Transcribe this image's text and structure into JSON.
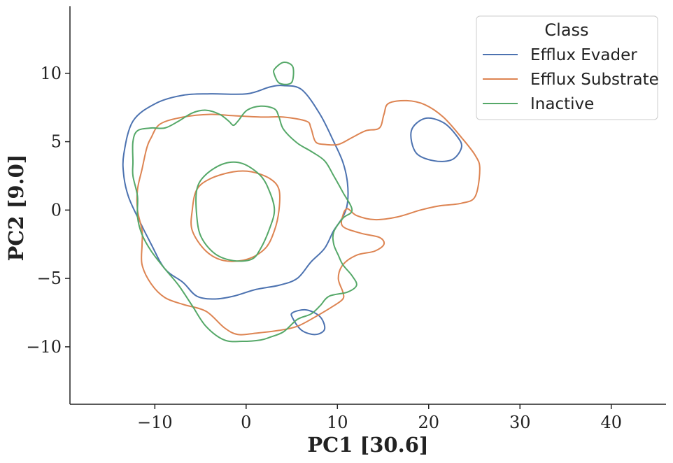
{
  "chart_data": {
    "type": "contour",
    "xlabel": "PC1 [30.6]",
    "ylabel": "PC2 [9.0]",
    "xlim": [
      -19.3,
      46
    ],
    "ylim": [
      -14.2,
      14.9
    ],
    "xticks": [
      -10,
      0,
      10,
      20,
      30,
      40
    ],
    "yticks": [
      -10,
      -5,
      0,
      5,
      10
    ],
    "xtick_labels": [
      "−10",
      "0",
      "10",
      "20",
      "30",
      "40"
    ],
    "ytick_labels": [
      "−10",
      "−5",
      "0",
      "5",
      "10"
    ],
    "grid": false,
    "legend": {
      "title": "Class",
      "placement": "top-right"
    },
    "series": [
      {
        "name": "Efflux Evader",
        "color": "#4c72b0",
        "contours": [
          [
            [
              -13.4,
              4.1
            ],
            [
              -12.4,
              6.5
            ],
            [
              -9.9,
              7.8
            ],
            [
              -6.9,
              8.4
            ],
            [
              -3.9,
              8.5
            ],
            [
              0.1,
              8.5
            ],
            [
              2.6,
              9.0
            ],
            [
              4.1,
              9.1
            ],
            [
              6.1,
              8.8
            ],
            [
              8.1,
              7.0
            ],
            [
              9.6,
              5.0
            ],
            [
              10.6,
              3.5
            ],
            [
              11.1,
              2.0
            ],
            [
              11.1,
              0.5
            ],
            [
              10.6,
              -0.5
            ],
            [
              9.6,
              -1.5
            ],
            [
              8.6,
              -2.8
            ],
            [
              7.1,
              -3.8
            ],
            [
              5.6,
              -5.0
            ],
            [
              3.6,
              -5.5
            ],
            [
              1.1,
              -5.8
            ],
            [
              -1.4,
              -6.3
            ],
            [
              -3.4,
              -6.5
            ],
            [
              -5.4,
              -6.3
            ],
            [
              -6.9,
              -5.3
            ],
            [
              -8.9,
              -4.3
            ],
            [
              -10.4,
              -2.5
            ],
            [
              -11.9,
              -0.5
            ],
            [
              -12.9,
              1.0
            ],
            [
              -13.4,
              2.5
            ],
            [
              -13.4,
              4.1
            ]
          ],
          [
            [
              18.1,
              5.8
            ],
            [
              19.6,
              6.7
            ],
            [
              21.6,
              6.4
            ],
            [
              23.1,
              5.4
            ],
            [
              23.6,
              4.6
            ],
            [
              22.6,
              3.7
            ],
            [
              20.6,
              3.6
            ],
            [
              18.6,
              4.2
            ],
            [
              18.1,
              5.8
            ]
          ],
          [
            [
              5.1,
              -7.5
            ],
            [
              6.6,
              -7.3
            ],
            [
              8.1,
              -7.8
            ],
            [
              8.6,
              -8.7
            ],
            [
              7.6,
              -9.1
            ],
            [
              6.1,
              -8.8
            ],
            [
              5.1,
              -7.9
            ],
            [
              5.1,
              -7.5
            ]
          ]
        ]
      },
      {
        "name": "Efflux Substrate",
        "color": "#dd8452",
        "contours": [
          [
            [
              -10.4,
              5.3
            ],
            [
              -9.4,
              6.3
            ],
            [
              -6.9,
              6.8
            ],
            [
              -3.9,
              7.0
            ],
            [
              -1.4,
              6.9
            ],
            [
              1.6,
              6.8
            ],
            [
              4.1,
              6.8
            ],
            [
              6.6,
              6.5
            ],
            [
              7.1,
              6.0
            ],
            [
              7.6,
              5.0
            ],
            [
              8.6,
              4.8
            ],
            [
              10.1,
              4.8
            ],
            [
              11.6,
              5.3
            ],
            [
              13.1,
              5.8
            ],
            [
              14.6,
              6.0
            ],
            [
              15.1,
              7.0
            ],
            [
              15.6,
              7.8
            ],
            [
              17.6,
              8.0
            ],
            [
              19.6,
              7.7
            ],
            [
              21.6,
              6.8
            ],
            [
              23.6,
              5.3
            ],
            [
              25.1,
              4.0
            ],
            [
              25.6,
              3.0
            ],
            [
              25.1,
              1.0
            ],
            [
              23.6,
              0.5
            ],
            [
              21.1,
              0.3
            ],
            [
              19.1,
              0.0
            ],
            [
              16.6,
              -0.5
            ],
            [
              14.1,
              -0.7
            ],
            [
              12.1,
              -0.4
            ],
            [
              11.1,
              0.1
            ],
            [
              10.6,
              -0.4
            ],
            [
              10.6,
              -1.2
            ],
            [
              12.6,
              -1.7
            ],
            [
              14.6,
              -2.0
            ],
            [
              15.1,
              -2.5
            ],
            [
              14.1,
              -3.0
            ],
            [
              12.1,
              -3.3
            ],
            [
              10.6,
              -4.0
            ],
            [
              10.1,
              -5.0
            ],
            [
              10.6,
              -6.0
            ],
            [
              10.6,
              -6.5
            ],
            [
              9.6,
              -7.0
            ],
            [
              7.6,
              -7.8
            ],
            [
              5.6,
              -8.5
            ],
            [
              3.6,
              -8.8
            ],
            [
              1.1,
              -9.0
            ],
            [
              -0.9,
              -9.1
            ],
            [
              -2.4,
              -8.6
            ],
            [
              -4.4,
              -7.4
            ],
            [
              -6.9,
              -6.9
            ],
            [
              -8.9,
              -6.4
            ],
            [
              -10.4,
              -5.4
            ],
            [
              -11.4,
              -4.0
            ],
            [
              -11.4,
              -2.5
            ],
            [
              -11.4,
              -1.5
            ],
            [
              -11.9,
              0.0
            ],
            [
              -11.9,
              1.5
            ],
            [
              -11.4,
              3.0
            ],
            [
              -10.9,
              4.5
            ],
            [
              -10.4,
              5.3
            ]
          ],
          [
            [
              -5.9,
              0.0
            ],
            [
              -5.4,
              1.5
            ],
            [
              -3.9,
              2.3
            ],
            [
              -1.4,
              2.8
            ],
            [
              0.6,
              2.8
            ],
            [
              2.6,
              2.3
            ],
            [
              3.6,
              1.5
            ],
            [
              3.6,
              0.0
            ],
            [
              3.1,
              -1.5
            ],
            [
              2.1,
              -2.8
            ],
            [
              0.1,
              -3.6
            ],
            [
              -2.4,
              -3.7
            ],
            [
              -4.4,
              -3.0
            ],
            [
              -5.9,
              -1.5
            ],
            [
              -5.9,
              0.0
            ]
          ]
        ]
      },
      {
        "name": "Inactive",
        "color": "#55a868",
        "contours": [
          [
            [
              -12.4,
              5.0
            ],
            [
              -11.9,
              5.8
            ],
            [
              -10.4,
              6.0
            ],
            [
              -8.9,
              6.0
            ],
            [
              -7.4,
              6.5
            ],
            [
              -5.9,
              7.1
            ],
            [
              -4.4,
              7.3
            ],
            [
              -2.9,
              7.0
            ],
            [
              -1.9,
              6.5
            ],
            [
              -1.4,
              6.2
            ],
            [
              -0.9,
              6.5
            ],
            [
              0.1,
              7.3
            ],
            [
              1.6,
              7.6
            ],
            [
              3.1,
              7.4
            ],
            [
              3.6,
              6.8
            ],
            [
              4.1,
              5.9
            ],
            [
              5.6,
              4.9
            ],
            [
              7.1,
              4.3
            ],
            [
              8.6,
              3.6
            ],
            [
              9.6,
              2.5
            ],
            [
              10.6,
              1.3
            ],
            [
              11.6,
              0.0
            ],
            [
              10.6,
              -0.6
            ],
            [
              9.6,
              -1.6
            ],
            [
              9.6,
              -2.5
            ],
            [
              10.1,
              -3.3
            ],
            [
              10.6,
              -4.0
            ],
            [
              11.6,
              -4.8
            ],
            [
              12.1,
              -5.5
            ],
            [
              11.1,
              -6.0
            ],
            [
              9.1,
              -6.3
            ],
            [
              8.1,
              -7.0
            ],
            [
              7.1,
              -7.6
            ],
            [
              5.6,
              -8.0
            ],
            [
              4.1,
              -8.9
            ],
            [
              2.6,
              -9.3
            ],
            [
              1.6,
              -9.5
            ],
            [
              -0.4,
              -9.6
            ],
            [
              -2.4,
              -9.5
            ],
            [
              -4.4,
              -8.5
            ],
            [
              -5.9,
              -7.0
            ],
            [
              -7.4,
              -5.5
            ],
            [
              -8.9,
              -4.3
            ],
            [
              -10.4,
              -3.0
            ],
            [
              -11.4,
              -1.8
            ],
            [
              -11.9,
              -0.5
            ],
            [
              -11.9,
              1.0
            ],
            [
              -12.4,
              2.5
            ],
            [
              -12.4,
              3.5
            ],
            [
              -12.4,
              5.0
            ]
          ],
          [
            [
              -5.4,
              1.5
            ],
            [
              -4.4,
              2.6
            ],
            [
              -2.4,
              3.4
            ],
            [
              -0.4,
              3.4
            ],
            [
              1.6,
              2.5
            ],
            [
              2.6,
              1.3
            ],
            [
              3.1,
              0.0
            ],
            [
              2.6,
              -1.3
            ],
            [
              1.6,
              -2.8
            ],
            [
              0.6,
              -3.6
            ],
            [
              -1.4,
              -3.7
            ],
            [
              -3.4,
              -3.2
            ],
            [
              -4.9,
              -2.0
            ],
            [
              -5.4,
              -0.5
            ],
            [
              -5.4,
              1.5
            ]
          ],
          [
            [
              3.1,
              10.3
            ],
            [
              4.1,
              10.8
            ],
            [
              5.1,
              10.5
            ],
            [
              5.1,
              9.5
            ],
            [
              4.6,
              9.2
            ],
            [
              3.6,
              9.3
            ],
            [
              3.1,
              9.9
            ],
            [
              3.1,
              10.3
            ]
          ]
        ]
      }
    ]
  }
}
